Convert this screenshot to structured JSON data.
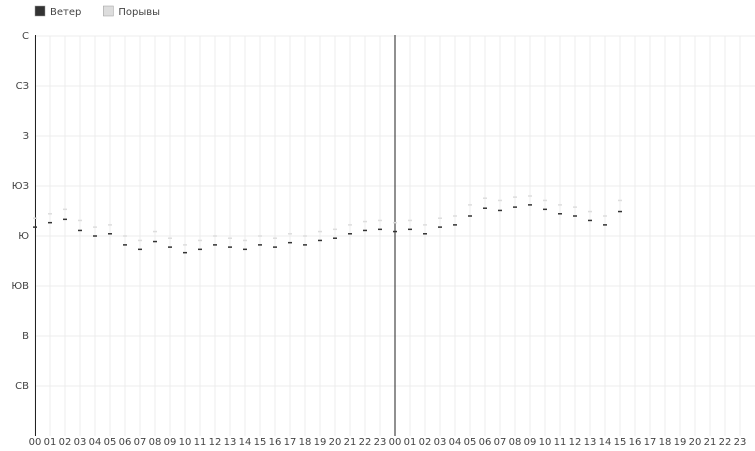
{
  "chart_data": {
    "type": "scatter",
    "series": [
      {
        "name": "Ветер",
        "color": "#333333",
        "values": [
          188,
          192,
          195,
          185,
          180,
          182,
          172,
          168,
          175,
          170,
          165,
          168,
          172,
          170,
          168,
          172,
          170,
          174,
          172,
          176,
          178,
          182,
          185,
          186,
          184,
          186,
          182,
          188,
          190,
          198,
          205,
          203,
          206,
          208,
          204,
          200,
          198,
          194,
          190,
          202
        ]
      },
      {
        "name": "Порывы",
        "color": "#dddddd",
        "values": [
          196,
          200,
          204,
          194,
          188,
          190,
          180,
          176,
          184,
          178,
          172,
          176,
          180,
          178,
          176,
          180,
          178,
          182,
          180,
          184,
          186,
          190,
          193,
          194,
          192,
          194,
          190,
          196,
          198,
          208,
          214,
          212,
          215,
          216,
          212,
          208,
          206,
          202,
          198,
          212
        ]
      }
    ],
    "x": [
      0,
      1,
      2,
      3,
      4,
      5,
      6,
      7,
      8,
      9,
      10,
      11,
      12,
      13,
      14,
      15,
      16,
      17,
      18,
      19,
      20,
      21,
      22,
      23,
      24,
      25,
      26,
      27,
      28,
      29,
      30,
      31,
      32,
      33,
      34,
      35,
      36,
      37,
      38,
      39
    ],
    "xlim": [
      0,
      48
    ],
    "xticks": [
      {
        "value": 0,
        "label": "00"
      },
      {
        "value": 1,
        "label": "01"
      },
      {
        "value": 2,
        "label": "02"
      },
      {
        "value": 3,
        "label": "03"
      },
      {
        "value": 4,
        "label": "04"
      },
      {
        "value": 5,
        "label": "05"
      },
      {
        "value": 6,
        "label": "06"
      },
      {
        "value": 7,
        "label": "07"
      },
      {
        "value": 8,
        "label": "08"
      },
      {
        "value": 9,
        "label": "09"
      },
      {
        "value": 10,
        "label": "10"
      },
      {
        "value": 11,
        "label": "11"
      },
      {
        "value": 12,
        "label": "12"
      },
      {
        "value": 13,
        "label": "13"
      },
      {
        "value": 14,
        "label": "14"
      },
      {
        "value": 15,
        "label": "15"
      },
      {
        "value": 16,
        "label": "16"
      },
      {
        "value": 17,
        "label": "17"
      },
      {
        "value": 18,
        "label": "18"
      },
      {
        "value": 19,
        "label": "19"
      },
      {
        "value": 20,
        "label": "20"
      },
      {
        "value": 21,
        "label": "21"
      },
      {
        "value": 22,
        "label": "22"
      },
      {
        "value": 23,
        "label": "23"
      },
      {
        "value": 24,
        "label": "00"
      },
      {
        "value": 25,
        "label": "01"
      },
      {
        "value": 26,
        "label": "02"
      },
      {
        "value": 27,
        "label": "03"
      },
      {
        "value": 28,
        "label": "04"
      },
      {
        "value": 29,
        "label": "05"
      },
      {
        "value": 30,
        "label": "06"
      },
      {
        "value": 31,
        "label": "07"
      },
      {
        "value": 32,
        "label": "08"
      },
      {
        "value": 33,
        "label": "09"
      },
      {
        "value": 34,
        "label": "10"
      },
      {
        "value": 35,
        "label": "11"
      },
      {
        "value": 36,
        "label": "12"
      },
      {
        "value": 37,
        "label": "13"
      },
      {
        "value": 38,
        "label": "14"
      },
      {
        "value": 39,
        "label": "15"
      },
      {
        "value": 40,
        "label": "16"
      },
      {
        "value": 41,
        "label": "17"
      },
      {
        "value": 42,
        "label": "18"
      },
      {
        "value": 43,
        "label": "19"
      },
      {
        "value": 44,
        "label": "20"
      },
      {
        "value": 45,
        "label": "21"
      },
      {
        "value": 46,
        "label": "22"
      },
      {
        "value": 47,
        "label": "23"
      }
    ],
    "ylim": [
      0,
      360
    ],
    "yticks": [
      {
        "value": 360,
        "label": "С"
      },
      {
        "value": 315,
        "label": "СЗ"
      },
      {
        "value": 270,
        "label": "З"
      },
      {
        "value": 225,
        "label": "ЮЗ"
      },
      {
        "value": 180,
        "label": "Ю"
      },
      {
        "value": 135,
        "label": "ЮВ"
      },
      {
        "value": 90,
        "label": "В"
      },
      {
        "value": 45,
        "label": "СВ"
      }
    ],
    "grid": true
  }
}
